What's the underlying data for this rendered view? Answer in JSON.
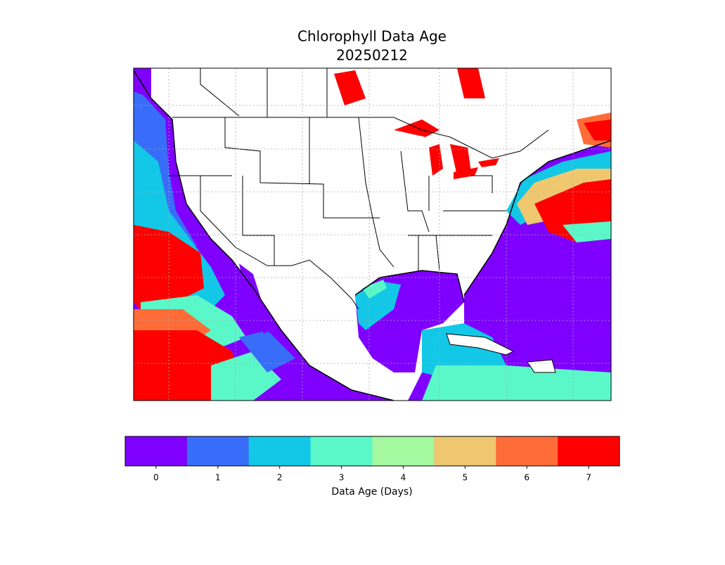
{
  "map": {
    "title": "Chlorophyll Data Age",
    "subtitle": "20250212"
  },
  "colorbar": {
    "ticks": [
      0,
      1,
      2,
      3,
      4,
      5,
      6,
      7
    ],
    "colors": [
      "#7f00ff",
      "#386df9",
      "#12c8e6",
      "#5af8c8",
      "#a4f89f",
      "#eec76f",
      "#ff6c38",
      "#ff0000"
    ],
    "label": "Data Age (Days)"
  }
}
